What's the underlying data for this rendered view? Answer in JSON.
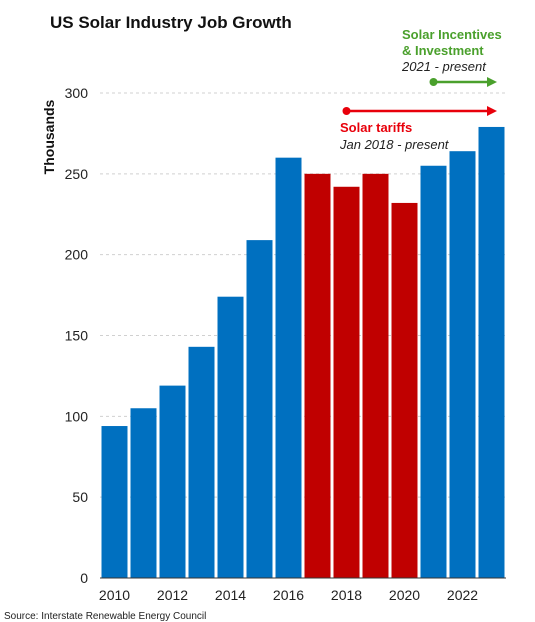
{
  "chart_data": {
    "type": "bar",
    "title": "US Solar Industry Job Growth",
    "ylabel": "Thousands",
    "xlabel": "",
    "ylim": [
      0,
      300
    ],
    "yticks": [
      0,
      50,
      100,
      150,
      200,
      250,
      300
    ],
    "xtick_labels": [
      "2010",
      "2012",
      "2014",
      "2016",
      "2018",
      "2020",
      "2022"
    ],
    "categories": [
      2010,
      2011,
      2012,
      2013,
      2014,
      2015,
      2016,
      2017,
      2018,
      2019,
      2020,
      2021,
      2022,
      2023
    ],
    "values": [
      94,
      105,
      119,
      143,
      174,
      209,
      260,
      250,
      242,
      250,
      232,
      255,
      264,
      279
    ],
    "bar_colors": [
      "#0070c0",
      "#0070c0",
      "#0070c0",
      "#0070c0",
      "#0070c0",
      "#0070c0",
      "#0070c0",
      "#c00000",
      "#c00000",
      "#c00000",
      "#c00000",
      "#0070c0",
      "#0070c0",
      "#0070c0"
    ],
    "grid": true,
    "annotations": [
      {
        "title": "Solar tariffs",
        "subtitle": "Jan 2018 - present",
        "color": "#e8000b",
        "start": 2018
      },
      {
        "title_lines": [
          "Solar Incentives",
          "& Investment"
        ],
        "subtitle": "2021 - present",
        "color": "#4aa02c",
        "start": 2021
      }
    ],
    "source": "Source: Interstate Renewable Energy Council"
  }
}
